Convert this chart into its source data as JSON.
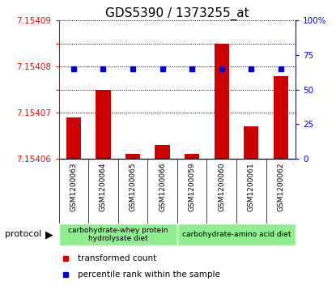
{
  "title": "GDS5390 / 1373255_at",
  "samples": [
    "GSM1200063",
    "GSM1200064",
    "GSM1200065",
    "GSM1200066",
    "GSM1200059",
    "GSM1200060",
    "GSM1200061",
    "GSM1200062"
  ],
  "transformed_count": [
    7.154069,
    7.154075,
    7.154061,
    7.154063,
    7.154061,
    7.154085,
    7.154067,
    7.154078
  ],
  "percentile_rank": [
    65,
    65,
    65,
    65,
    65,
    65,
    65,
    65
  ],
  "ylim_left": [
    7.15406,
    7.15409
  ],
  "ylim_right": [
    0,
    100
  ],
  "left_ticks": [
    7.15406,
    7.15407,
    7.154075,
    7.15408,
    7.154085,
    7.15409
  ],
  "left_labels": [
    "7.15406",
    "7.15407",
    "",
    "7.15408",
    "",
    "7.15409"
  ],
  "right_ticks": [
    0,
    25,
    50,
    75,
    100
  ],
  "right_labels": [
    "0",
    "25",
    "50",
    "75",
    "100%"
  ],
  "grid_lines": [
    7.15407,
    7.154075,
    7.15408,
    7.154085,
    7.15409
  ],
  "protocol_groups": [
    {
      "label": "carbohydrate-whey protein\nhydrolysate diet",
      "start": 0,
      "end": 4,
      "color": "#90ee90"
    },
    {
      "label": "carbohydrate-amino acid diet",
      "start": 4,
      "end": 8,
      "color": "#90ee90"
    }
  ],
  "bar_color": "#cc0000",
  "dot_color": "#0000cc",
  "gray_bg": "#d3d3d3",
  "plot_bg": "#ffffff",
  "title_fontsize": 11,
  "tick_fontsize": 7.5,
  "sample_fontsize": 6.5,
  "legend_fontsize": 7.5,
  "proto_label_fontsize": 8,
  "group_label_fontsize": 6.5
}
